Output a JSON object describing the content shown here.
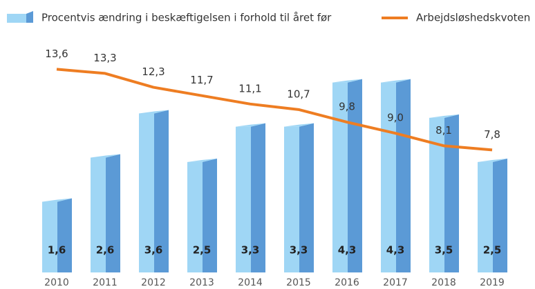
{
  "chart_data": {
    "type": "bar_line",
    "categories": [
      "2010",
      "2011",
      "2012",
      "2013",
      "2014",
      "2015",
      "2016",
      "2017",
      "2018",
      "2019"
    ],
    "ylim": [
      0,
      5.2
    ],
    "y2lim": [
      -1,
      15.5
    ],
    "series": [
      {
        "name": "Procentvis ændring i beskæftigelsen i forhold til året før",
        "type": "bar",
        "color": "#9fd6f5",
        "side_color": "#5b9ad6",
        "values": [
          1.6,
          2.6,
          3.6,
          2.5,
          3.3,
          3.3,
          4.3,
          4.3,
          3.5,
          2.5
        ],
        "value_labels": [
          "1,6",
          "2,6",
          "3,6",
          "2,5",
          "3,3",
          "3,3",
          "4,3",
          "4,3",
          "3,5",
          "2,5"
        ]
      },
      {
        "name": "Arbejdsløshedskvoten",
        "type": "line",
        "axis": "y2",
        "color": "#ee7d22",
        "values": [
          13.6,
          13.3,
          12.3,
          11.7,
          11.1,
          10.7,
          9.8,
          9.0,
          8.1,
          7.8
        ],
        "value_labels": [
          "13,6",
          "13,3",
          "12,3",
          "11,7",
          "11,1",
          "10,7",
          "9,8",
          "9,0",
          "8,1",
          "7,8"
        ]
      }
    ]
  }
}
